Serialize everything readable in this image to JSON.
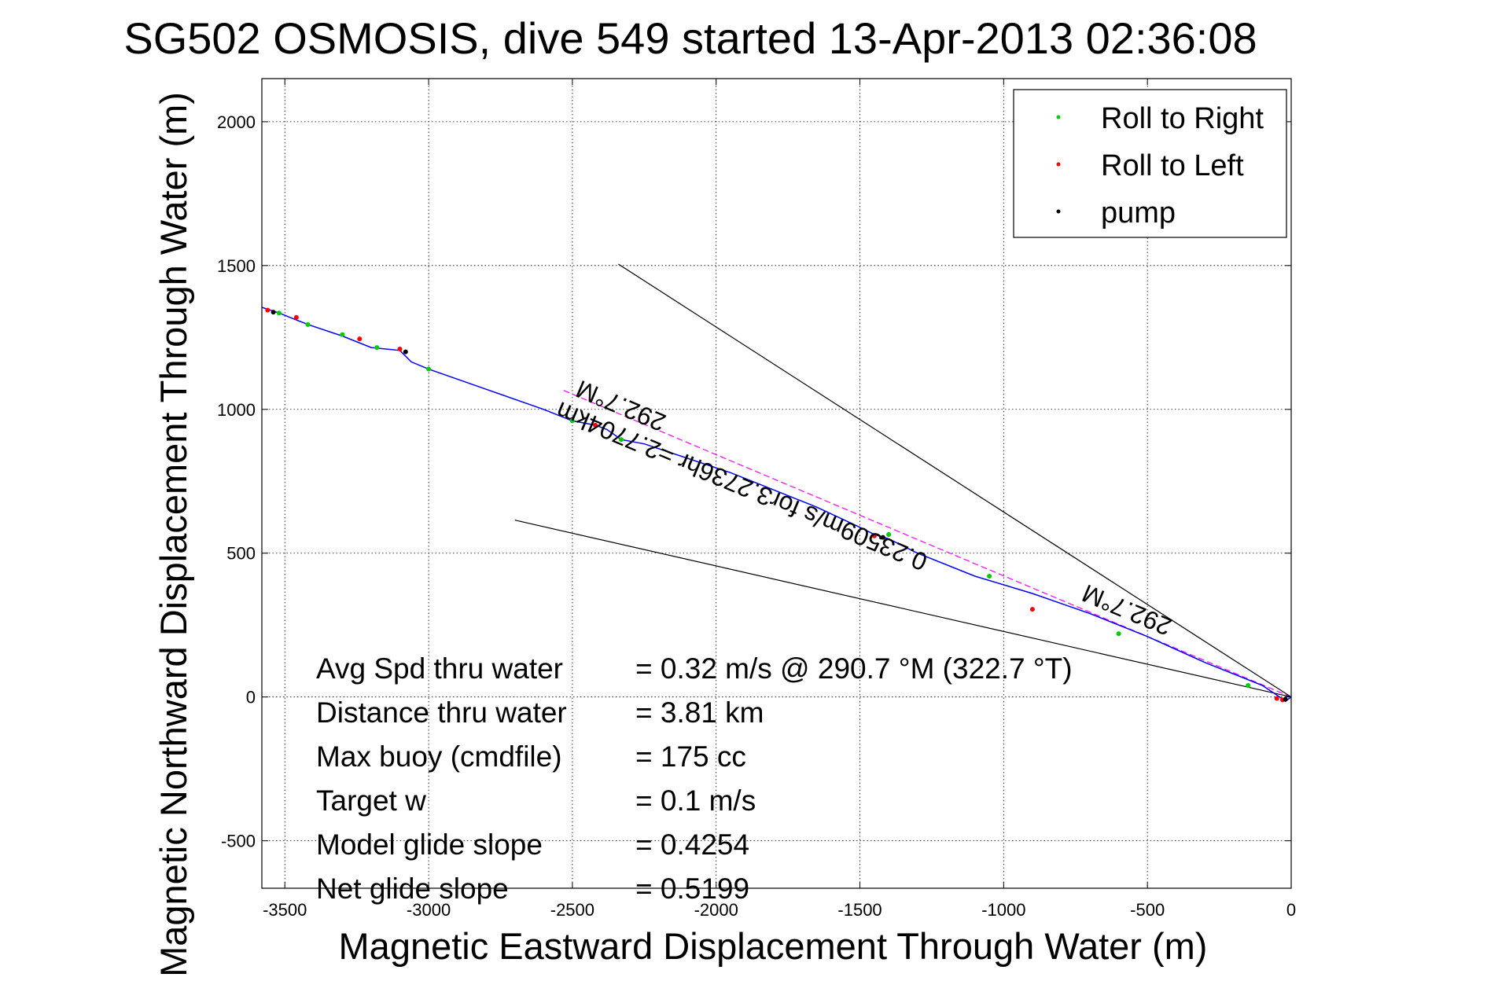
{
  "chart_data": {
    "type": "line",
    "title": "SG502 OSMOSIS, dive 549 started 13-Apr-2013 02:36:08",
    "xlabel": "Magnetic Eastward Displacement Through Water (m)",
    "ylabel": "Magnetic Northward Displacement Through Water (m)",
    "xlim": [
      -3580,
      0
    ],
    "ylim": [
      -665,
      2150
    ],
    "xticks": [
      -3500,
      -3000,
      -2500,
      -2000,
      -1500,
      -1000,
      -500,
      0
    ],
    "yticks": [
      -500,
      0,
      500,
      1000,
      1500,
      2000
    ],
    "grid": true,
    "legend_position": "top-right",
    "legend": [
      {
        "label": "Roll to Right",
        "color": "#00cc00"
      },
      {
        "label": "Roll to Left",
        "color": "#ff0000"
      },
      {
        "label": "pump",
        "color": "#000000"
      }
    ],
    "track": {
      "color": "#0000ff",
      "x": [
        0,
        -20,
        -40,
        -100,
        -300,
        -500,
        -700,
        -900,
        -1100,
        -1300,
        -1400,
        -1450,
        -1500,
        -1650,
        -1800,
        -1950,
        -2100,
        -2250,
        -2330,
        -2380,
        -2420,
        -2500,
        -2600,
        -2800,
        -3000,
        -3060,
        -3100,
        -3200,
        -3300,
        -3420,
        -3520,
        -3580
      ],
      "y": [
        0,
        -15,
        0,
        40,
        120,
        210,
        290,
        360,
        420,
        500,
        550,
        565,
        590,
        660,
        720,
        780,
        830,
        880,
        895,
        930,
        945,
        960,
        1000,
        1070,
        1140,
        1165,
        1205,
        1215,
        1255,
        1295,
        1335,
        1355
      ]
    },
    "series": [
      {
        "name": "Roll to Right",
        "color": "#00cc00",
        "x": [
          -3520,
          -3420,
          -3300,
          -3180,
          -3000,
          -2500,
          -2330,
          -1400,
          -1050,
          -600,
          -150
        ],
        "y": [
          1335,
          1295,
          1260,
          1215,
          1140,
          960,
          895,
          565,
          420,
          220,
          40
        ]
      },
      {
        "name": "Roll to Left",
        "color": "#ff0000",
        "x": [
          -3560,
          -3460,
          -3240,
          -3100,
          -2420,
          -1450,
          -900,
          -50,
          -30
        ],
        "y": [
          1345,
          1320,
          1245,
          1210,
          945,
          560,
          305,
          -5,
          -10
        ]
      },
      {
        "name": "pump",
        "color": "#000000",
        "x": [
          -3540,
          -3080,
          -1420,
          -20
        ],
        "y": [
          1338,
          1200,
          555,
          -8
        ]
      }
    ],
    "reference_lines": [
      {
        "color": "#ff00ff",
        "dashed": true,
        "x": [
          0,
          -2540
        ],
        "y": [
          0,
          1070
        ]
      },
      {
        "color": "#000000",
        "dashed": false,
        "x": [
          0,
          -2340
        ],
        "y": [
          0,
          1505
        ]
      },
      {
        "color": "#000000",
        "dashed": false,
        "x": [
          0,
          -2700
        ],
        "y": [
          0,
          615
        ]
      }
    ],
    "annotations": [
      {
        "text": "292.7°M",
        "x": -2320,
        "y": 1040,
        "rotate": 202.7
      },
      {
        "text": "0.23509m/s for3.2736hr =2.7704km",
        "x": -1900,
        "y": 760,
        "rotate": 202.7
      },
      {
        "text": "292.7°M",
        "x": -560,
        "y": 330,
        "rotate": 202.7
      }
    ],
    "stats": [
      {
        "label": "Avg Spd thru water",
        "value": "=  0.32 m/s @ 290.7 °M (322.7 °T)"
      },
      {
        "label": "Distance thru water",
        "value": "=  3.81 km"
      },
      {
        "label": "Max buoy (cmdfile)",
        "value": "= 175 cc"
      },
      {
        "label": "Target w",
        "value": "= 0.1 m/s"
      },
      {
        "label": "Model glide slope",
        "value": "= 0.4254"
      },
      {
        "label": "Net glide slope",
        "value": "= 0.5199"
      }
    ]
  }
}
